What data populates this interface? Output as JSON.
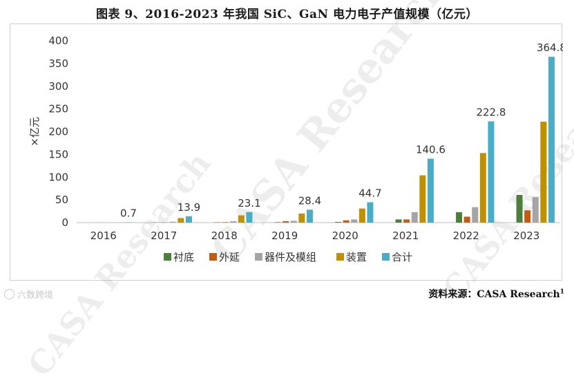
{
  "title": "图表 9、2016-2023 年我国 SiC、GaN 电力电子产值规模（亿元）",
  "source": {
    "label": "资料来源：",
    "name": "CASA Research",
    "footnote": "1"
  },
  "logo_text": "六数跨境",
  "watermarks": [
    "CASA Research",
    "CASA Research",
    "CASA Research"
  ],
  "chart_data": {
    "type": "bar",
    "ylabel": "×亿元",
    "ylim": [
      0,
      400
    ],
    "yticks": [
      0,
      50,
      100,
      150,
      200,
      250,
      300,
      350,
      400
    ],
    "categories": [
      "2016",
      "2017",
      "2018",
      "2019",
      "2020",
      "2021",
      "2022",
      "2023"
    ],
    "series": [
      {
        "name": "衬底",
        "color": "#4e7f3a",
        "values": [
          0.1,
          0.5,
          0.8,
          1.0,
          1.5,
          7,
          23,
          61
        ]
      },
      {
        "name": "外延",
        "color": "#c55a11",
        "values": [
          0.1,
          0.5,
          1.0,
          3.0,
          5.0,
          7,
          13,
          27
        ]
      },
      {
        "name": "器件及模组",
        "color": "#a5a5a5",
        "values": [
          0.2,
          2.0,
          3.0,
          4.0,
          7.0,
          23,
          34,
          56
        ]
      },
      {
        "name": "装置",
        "color": "#bf9000",
        "values": [
          0.3,
          10.0,
          16.0,
          20.0,
          31.0,
          104,
          153,
          222
        ]
      },
      {
        "name": "合计",
        "color": "#4bacc6",
        "values": [
          0.7,
          13.9,
          23.1,
          28.4,
          44.7,
          140.6,
          222.8,
          364.8
        ]
      }
    ],
    "total_labels": [
      "0.7",
      "13.9",
      "23.1",
      "28.4",
      "44.7",
      "140.6",
      "222.8",
      "364.8"
    ],
    "grid": false,
    "legend": "bottom"
  }
}
